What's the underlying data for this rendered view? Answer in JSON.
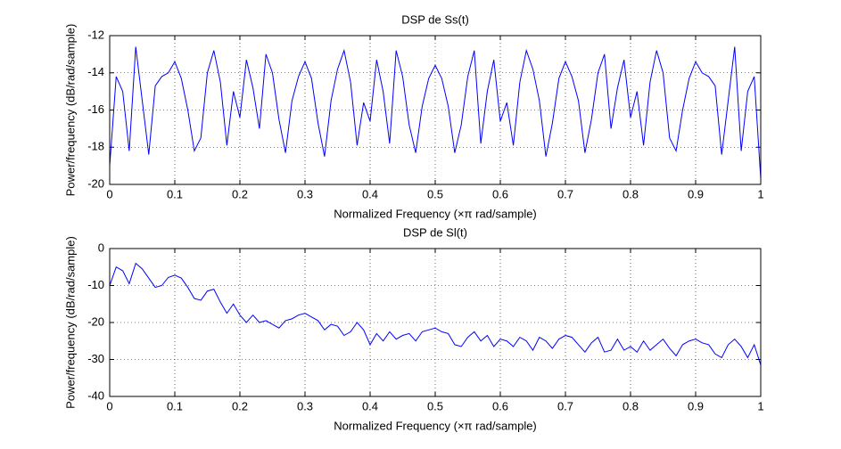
{
  "chart_data": [
    {
      "type": "line",
      "title": "DSP de Ss(t)",
      "x_label": "Normalized Frequency  (×π rad/sample)",
      "y_label": "Power/frequency (dB/rad/sample)",
      "xlim": [
        0,
        1
      ],
      "xticks": [
        0,
        0.1,
        0.2,
        0.3,
        0.4,
        0.5,
        0.6,
        0.7,
        0.8,
        0.9,
        1
      ],
      "ylim": [
        -20,
        -12
      ],
      "yticks": [
        -20,
        -18,
        -16,
        -14,
        -12
      ],
      "grid": true,
      "x": [
        0,
        0.01,
        0.02,
        0.03,
        0.04,
        0.05,
        0.06,
        0.07,
        0.08,
        0.09,
        0.1,
        0.11,
        0.12,
        0.13,
        0.14,
        0.15,
        0.16,
        0.17,
        0.18,
        0.19,
        0.2,
        0.21,
        0.22,
        0.23,
        0.24,
        0.25,
        0.26,
        0.27,
        0.28,
        0.29,
        0.3,
        0.31,
        0.32,
        0.33,
        0.34,
        0.35,
        0.36,
        0.37,
        0.38,
        0.39,
        0.4,
        0.41,
        0.42,
        0.43,
        0.44,
        0.45,
        0.46,
        0.47,
        0.48,
        0.49,
        0.5,
        0.51,
        0.52,
        0.53,
        0.54,
        0.55,
        0.56,
        0.57,
        0.58,
        0.59,
        0.6,
        0.61,
        0.62,
        0.63,
        0.64,
        0.65,
        0.66,
        0.67,
        0.68,
        0.69,
        0.7,
        0.71,
        0.72,
        0.73,
        0.74,
        0.75,
        0.76,
        0.77,
        0.78,
        0.79,
        0.8,
        0.81,
        0.82,
        0.83,
        0.84,
        0.85,
        0.86,
        0.87,
        0.88,
        0.89,
        0.9,
        0.91,
        0.92,
        0.93,
        0.94,
        0.95,
        0.96,
        0.97,
        0.98,
        0.99,
        1
      ],
      "series": [
        {
          "color": "#0000ff",
          "values": [
            -19,
            -14.2,
            -15,
            -18.2,
            -12.6,
            -15.5,
            -18.4,
            -14.7,
            -14.2,
            -14,
            -13.4,
            -14.3,
            -16,
            -18.2,
            -17.5,
            -14,
            -12.8,
            -14.5,
            -17.9,
            -15,
            -16.4,
            -13.3,
            -14.8,
            -17,
            -13,
            -14,
            -16.5,
            -18.3,
            -15.5,
            -14.2,
            -13.4,
            -14.3,
            -16.7,
            -18.5,
            -15.5,
            -13.8,
            -12.8,
            -14.5,
            -17.9,
            -15.6,
            -16.6,
            -13.3,
            -15,
            -17.8,
            -12.8,
            -14.2,
            -16.8,
            -18.3,
            -15.8,
            -14.3,
            -13.6,
            -14.3,
            -15.8,
            -18.3,
            -16.8,
            -14.2,
            -12.8,
            -17.8,
            -15,
            -13.3,
            -16.6,
            -15.6,
            -17.9,
            -14.5,
            -12.8,
            -13.8,
            -15.5,
            -18.5,
            -16.7,
            -14.3,
            -13.4,
            -14.2,
            -15.5,
            -18.3,
            -16.5,
            -14,
            -13,
            -17,
            -14.8,
            -13.3,
            -16.4,
            -15,
            -17.9,
            -14.5,
            -12.8,
            -14,
            -17.5,
            -18.2,
            -16,
            -14.3,
            -13.4,
            -14,
            -14.2,
            -14.7,
            -18.4,
            -15.5,
            -12.6,
            -18.2,
            -15,
            -14.2,
            -19.7
          ]
        }
      ]
    },
    {
      "type": "line",
      "title": "DSP de Sl(t)",
      "x_label": "Normalized Frequency  (×π rad/sample)",
      "y_label": "Power/frequency (dB/rad/sample)",
      "xlim": [
        0,
        1
      ],
      "xticks": [
        0,
        0.1,
        0.2,
        0.3,
        0.4,
        0.5,
        0.6,
        0.7,
        0.8,
        0.9,
        1
      ],
      "ylim": [
        -40,
        0
      ],
      "yticks": [
        -40,
        -30,
        -20,
        -10,
        0
      ],
      "grid": true,
      "x": [
        0,
        0.01,
        0.02,
        0.03,
        0.04,
        0.05,
        0.06,
        0.07,
        0.08,
        0.09,
        0.1,
        0.11,
        0.12,
        0.13,
        0.14,
        0.15,
        0.16,
        0.17,
        0.18,
        0.19,
        0.2,
        0.21,
        0.22,
        0.23,
        0.24,
        0.25,
        0.26,
        0.27,
        0.28,
        0.29,
        0.3,
        0.31,
        0.32,
        0.33,
        0.34,
        0.35,
        0.36,
        0.37,
        0.38,
        0.39,
        0.4,
        0.41,
        0.42,
        0.43,
        0.44,
        0.45,
        0.46,
        0.47,
        0.48,
        0.49,
        0.5,
        0.51,
        0.52,
        0.53,
        0.54,
        0.55,
        0.56,
        0.57,
        0.58,
        0.59,
        0.6,
        0.61,
        0.62,
        0.63,
        0.64,
        0.65,
        0.66,
        0.67,
        0.68,
        0.69,
        0.7,
        0.71,
        0.72,
        0.73,
        0.74,
        0.75,
        0.76,
        0.77,
        0.78,
        0.79,
        0.8,
        0.81,
        0.82,
        0.83,
        0.84,
        0.85,
        0.86,
        0.87,
        0.88,
        0.89,
        0.9,
        0.91,
        0.92,
        0.93,
        0.94,
        0.95,
        0.96,
        0.97,
        0.98,
        0.99,
        1
      ],
      "series": [
        {
          "color": "#0000ff",
          "values": [
            -10,
            -5,
            -6,
            -9.5,
            -4,
            -5.5,
            -8,
            -10.5,
            -10,
            -7.8,
            -7.2,
            -8,
            -10.5,
            -13.5,
            -14,
            -11.5,
            -11,
            -14.5,
            -17.5,
            -15,
            -18,
            -20,
            -18,
            -20,
            -19.5,
            -20.5,
            -21.5,
            -19.5,
            -19,
            -18,
            -17.5,
            -18.5,
            -19.5,
            -22,
            -20.5,
            -21,
            -23.5,
            -22.5,
            -20,
            -22,
            -26,
            -23,
            -25,
            -22.5,
            -24.5,
            -23.5,
            -23,
            -25,
            -22.5,
            -22,
            -21.5,
            -22.5,
            -23,
            -26,
            -26.5,
            -24,
            -22.5,
            -25,
            -23.5,
            -26.5,
            -24.5,
            -25,
            -26.5,
            -24,
            -25,
            -27.5,
            -24,
            -25,
            -27,
            -24.5,
            -23.5,
            -24,
            -26,
            -28,
            -25.5,
            -24,
            -28,
            -27.5,
            -24.5,
            -27.5,
            -26.5,
            -28,
            -25,
            -27.5,
            -26,
            -24.5,
            -27,
            -29,
            -26,
            -25,
            -24.5,
            -25.5,
            -26,
            -28.5,
            -29.5,
            -26,
            -24.5,
            -26.5,
            -29.5,
            -26,
            -31.5
          ]
        }
      ]
    }
  ]
}
